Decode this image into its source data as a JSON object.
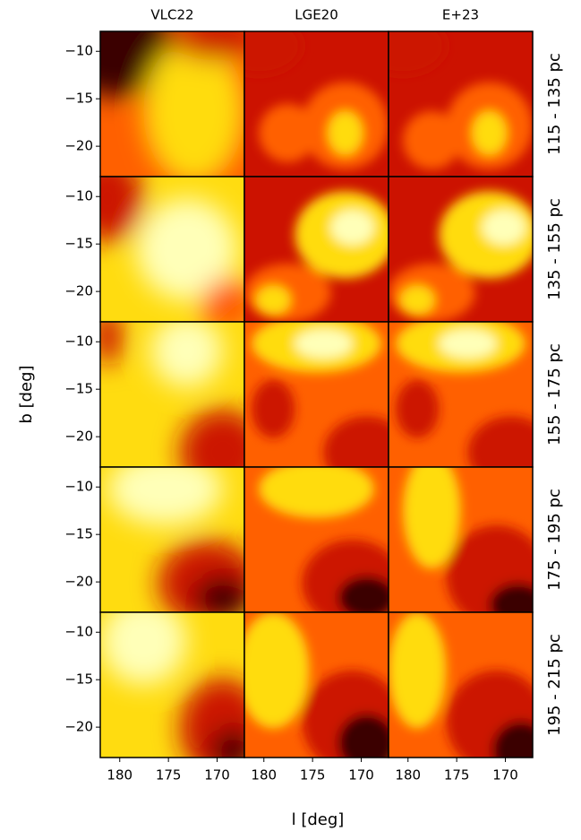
{
  "chart_data": {
    "type": "heatmap-grid",
    "columns": [
      "VLC22",
      "LGE20",
      "E+23"
    ],
    "rows": [
      "115 - 135 pc",
      "135 - 155 pc",
      "155 - 175 pc",
      "175 - 195 pc",
      "195 - 215 pc"
    ],
    "xlabel": "l [deg]",
    "ylabel": "b [deg]",
    "xlim": [
      182,
      167.2
    ],
    "xticks": [
      180,
      175,
      170
    ],
    "ylim": [
      -23.2,
      -7.9
    ],
    "yticks": [
      {
        "value": -10,
        "label": "−10"
      },
      {
        "value": -15,
        "label": "−15"
      },
      {
        "value": -20,
        "label": "−20"
      }
    ]
  }
}
